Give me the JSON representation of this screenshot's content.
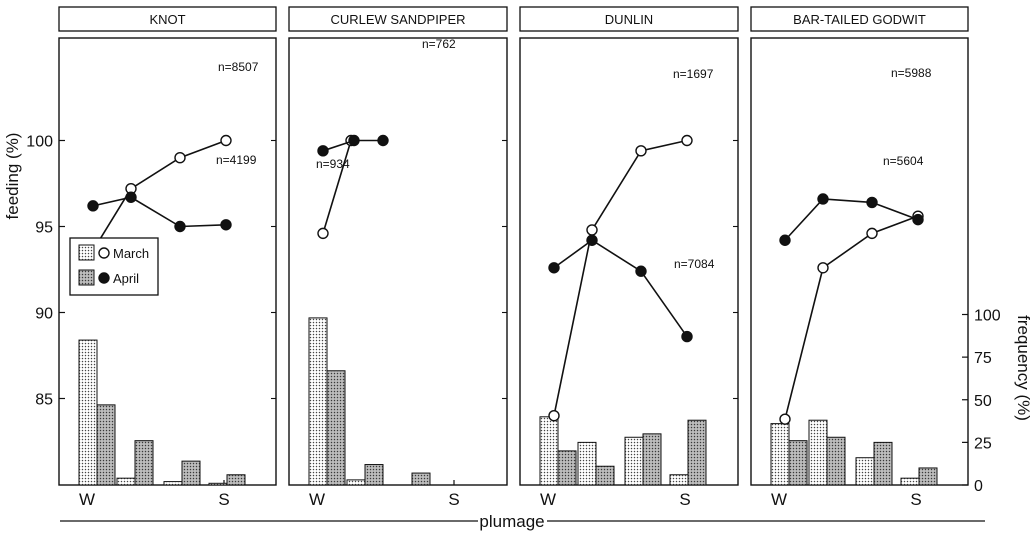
{
  "chart_data": {
    "type": "line",
    "xlabel": "plumage",
    "ylabel": "feeding (%)",
    "y2label": "frequency (%)",
    "ylim": [
      80,
      101
    ],
    "y2lim": [
      0,
      100
    ],
    "y_ticks": [
      "85",
      "90",
      "95",
      "100"
    ],
    "y2_ticks": [
      "0",
      "25",
      "50",
      "75",
      "100"
    ],
    "x_tick_labels": [
      "W",
      "S"
    ],
    "legend": {
      "position": "left-middle",
      "entries": [
        "March",
        "April"
      ]
    },
    "panels": [
      {
        "title": "KNOT",
        "march_feeding": [
          93.6,
          97.2,
          99.0,
          100.0
        ],
        "april_feeding": [
          96.2,
          96.7,
          95.0,
          95.1
        ],
        "march_frequency": [
          85,
          4,
          2,
          1
        ],
        "april_frequency": [
          47,
          26,
          14,
          6
        ],
        "annotations": [
          "n=8507",
          "n=4199"
        ]
      },
      {
        "title": "CURLEW SANDPIPER",
        "march_feeding": [
          94.6,
          100.0
        ],
        "april_feeding": [
          99.4,
          100.0,
          100.0
        ],
        "march_frequency": [
          98,
          3,
          0,
          0
        ],
        "april_frequency": [
          67,
          12,
          7,
          0
        ],
        "annotations": [
          "n=762",
          "n=934"
        ]
      },
      {
        "title": "DUNLIN",
        "march_feeding": [
          84.0,
          94.8,
          99.4,
          100.0
        ],
        "april_feeding": [
          92.6,
          94.2,
          92.4,
          88.6
        ],
        "march_frequency": [
          40,
          25,
          28,
          6
        ],
        "april_frequency": [
          20,
          11,
          30,
          38
        ],
        "annotations": [
          "n=1697",
          "n=7084"
        ]
      },
      {
        "title": "BAR-TAILED GODWIT",
        "march_feeding": [
          83.8,
          92.6,
          94.6,
          95.6
        ],
        "april_feeding": [
          94.2,
          96.6,
          96.4,
          95.4
        ],
        "march_frequency": [
          36,
          38,
          16,
          4
        ],
        "april_frequency": [
          26,
          28,
          25,
          10
        ],
        "annotations": [
          "n=5988",
          "n=5604"
        ]
      }
    ]
  }
}
